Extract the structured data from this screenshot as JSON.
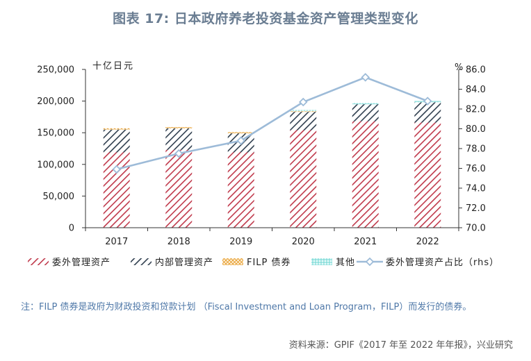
{
  "title": "图表 17: 日本政府养老投资基金资产管理类型变化",
  "note": "注：FILP 债券是政府为财政投资和贷款计划 （Fiscal Investment and Loan Program，FILP）而发行的债券。",
  "source": "资料来源：GPIF《2017 年至 2022 年年报》，兴业研究",
  "colors": {
    "external": "#c0394b",
    "internal": "#2f3e4e",
    "filp": "#e8a33a",
    "other": "#6fd6d2",
    "ratio_line": "#9dbbd8",
    "axis": "#333333"
  },
  "chart_data": {
    "type": "bar",
    "stacked": true,
    "categories": [
      "2017",
      "2018",
      "2019",
      "2020",
      "2021",
      "2022"
    ],
    "ylabel": "十亿日元",
    "ylabel_right": "%",
    "ylim": [
      0,
      250000
    ],
    "ylim_right": [
      70.0,
      86.0
    ],
    "yticks": [
      "0",
      "50,000",
      "100,000",
      "150,000",
      "200,000",
      "250,000"
    ],
    "yticks_right": [
      "70.0",
      "72.0",
      "74.0",
      "76.0",
      "78.0",
      "80.0",
      "82.0",
      "84.0",
      "86.0"
    ],
    "series": [
      {
        "name": "委外管理资产",
        "values": [
          119000,
          123000,
          119000,
          154000,
          168000,
          166000
        ],
        "pattern": "hatch",
        "color_key": "external"
      },
      {
        "name": "内部管理资产",
        "values": [
          36000,
          34000,
          30000,
          29000,
          27000,
          32000
        ],
        "pattern": "hatch",
        "color_key": "internal"
      },
      {
        "name": "FILP 债券",
        "values": [
          2000,
          2000,
          2000,
          1000,
          0,
          0
        ],
        "pattern": "cross",
        "color_key": "filp"
      },
      {
        "name": "其他",
        "values": [
          0,
          0,
          0,
          2000,
          2000,
          2000
        ],
        "pattern": "grid",
        "color_key": "other"
      }
    ],
    "line_series": {
      "name": "委外管理资产占比（rhs）",
      "axis": "right",
      "values": [
        75.9,
        77.5,
        78.8,
        82.7,
        85.2,
        82.8
      ]
    },
    "legend_position": "bottom",
    "grid": false
  }
}
